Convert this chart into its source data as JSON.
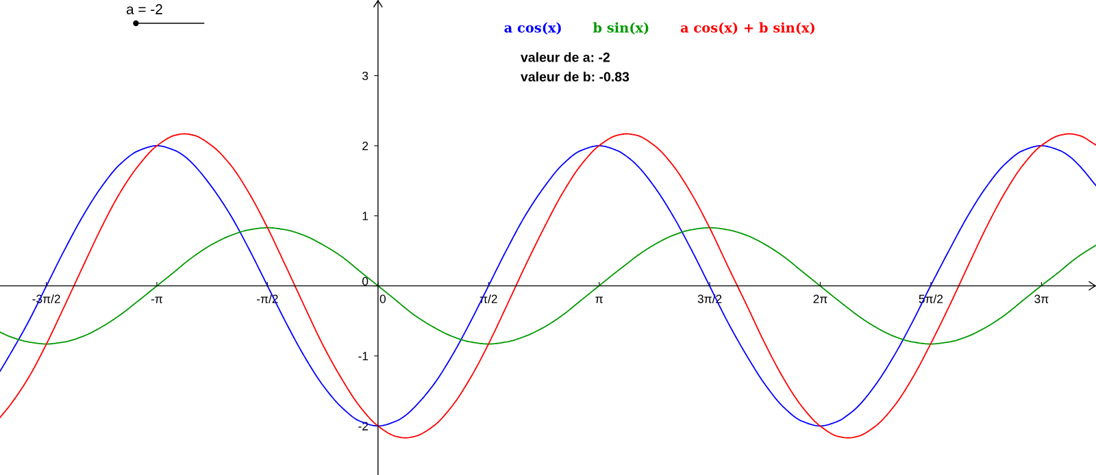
{
  "chart_data": {
    "type": "line",
    "x": [
      -5.37,
      -5.24,
      -4.97,
      -4.71,
      -4.45,
      -4.19,
      -3.93,
      -3.67,
      -3.4,
      -3.14,
      -2.88,
      -2.75,
      -2.62,
      -2.36,
      -2.09,
      -1.83,
      -1.57,
      -1.31,
      -1.05,
      -0.79,
      -0.52,
      -0.26,
      0,
      0.26,
      0.39,
      0.52,
      0.79,
      1.05,
      1.31,
      1.57,
      1.83,
      2.09,
      2.36,
      2.62,
      2.88,
      3.14,
      3.4,
      3.53,
      3.67,
      3.93,
      4.19,
      4.45,
      4.71,
      4.97,
      5.24,
      5.5,
      5.76,
      6.02,
      6.28,
      6.54,
      6.68,
      6.81,
      7.07,
      7.33,
      7.59,
      7.85,
      8.12,
      8.38,
      8.64,
      8.9,
      9.16,
      9.42,
      9.69,
      9.82,
      9.95,
      10.2
    ],
    "series": [
      {
        "name": "a cos(x)",
        "color": "#0000ff",
        "values": [
          -1.22,
          -1,
          -0.52,
          0,
          0.52,
          1,
          1.41,
          1.73,
          1.93,
          2,
          1.93,
          1.85,
          1.73,
          1.41,
          1,
          0.52,
          0,
          -0.52,
          -1,
          -1.41,
          -1.73,
          -1.93,
          -2,
          -1.93,
          -1.85,
          -1.73,
          -1.41,
          -1,
          -0.52,
          0,
          0.52,
          1,
          1.41,
          1.73,
          1.93,
          2,
          1.93,
          1.85,
          1.73,
          1.41,
          1,
          0.52,
          0,
          -0.52,
          -1,
          -1.41,
          -1.73,
          -1.93,
          -2,
          -1.93,
          -1.84,
          -1.73,
          -1.41,
          -1,
          -0.52,
          0,
          0.52,
          1,
          1.41,
          1.73,
          1.93,
          2,
          1.93,
          1.85,
          1.73,
          1.43
        ]
      },
      {
        "name": "b sin(x)",
        "color": "#009900",
        "values": [
          -0.66,
          -0.72,
          -0.8,
          -0.83,
          -0.8,
          -0.72,
          -0.59,
          -0.42,
          -0.21,
          0,
          0.21,
          0.32,
          0.42,
          0.59,
          0.72,
          0.8,
          0.83,
          0.8,
          0.72,
          0.59,
          0.42,
          0.21,
          0,
          -0.21,
          -0.32,
          -0.42,
          -0.59,
          -0.72,
          -0.8,
          -0.83,
          -0.8,
          -0.72,
          -0.59,
          -0.42,
          -0.21,
          0,
          0.21,
          0.31,
          0.42,
          0.59,
          0.72,
          0.8,
          0.83,
          0.8,
          0.72,
          0.59,
          0.42,
          0.21,
          0,
          -0.21,
          -0.32,
          -0.42,
          -0.59,
          -0.72,
          -0.8,
          -0.83,
          -0.8,
          -0.72,
          -0.59,
          -0.42,
          -0.21,
          0,
          0.21,
          0.32,
          0.42,
          0.58
        ]
      },
      {
        "name": "a cos(x) + b sin(x)",
        "color": "#ff0000",
        "values": [
          -1.88,
          -1.72,
          -1.32,
          -0.83,
          -0.28,
          0.28,
          0.83,
          1.32,
          1.72,
          2,
          2.15,
          2.17,
          2.15,
          2.0,
          1.72,
          1.32,
          0.83,
          0.28,
          -0.28,
          -0.83,
          -1.32,
          -1.72,
          -2,
          -2.15,
          -2.17,
          -2.15,
          -2.0,
          -1.72,
          -1.32,
          -0.83,
          -0.28,
          0.28,
          0.83,
          1.32,
          1.72,
          2,
          2.15,
          2.17,
          2.15,
          2.0,
          1.72,
          1.32,
          0.83,
          0.28,
          -0.28,
          -0.83,
          -1.32,
          -1.72,
          -2,
          -2.15,
          -2.17,
          -2.15,
          -2.0,
          -1.72,
          -1.32,
          -0.83,
          -0.28,
          0.28,
          0.83,
          1.32,
          1.72,
          2,
          2.15,
          2.17,
          2.15,
          2.01
        ]
      }
    ],
    "xlim": [
      -5.37,
      10.2
    ],
    "ylim": [
      -2.7,
      4.08
    ],
    "xticks": [
      {
        "value": -4.712,
        "label": "-3π/2"
      },
      {
        "value": -3.142,
        "label": "-π"
      },
      {
        "value": -1.571,
        "label": "-π/2"
      },
      0,
      {
        "value": 1.571,
        "label": "π/2"
      },
      {
        "value": 3.142,
        "label": "π"
      },
      {
        "value": 4.712,
        "label": "3π/2"
      },
      {
        "value": 6.283,
        "label": "2π"
      },
      {
        "value": 7.854,
        "label": "5π/2"
      },
      {
        "value": 9.425,
        "label": "3π"
      }
    ],
    "yticks": [
      -2,
      -1,
      0,
      1,
      2,
      3
    ],
    "annotations": [
      "a = -2",
      "valeur de a: -2",
      "valeur de b: -0.83"
    ],
    "legend": "top",
    "line_style": "solid"
  }
}
